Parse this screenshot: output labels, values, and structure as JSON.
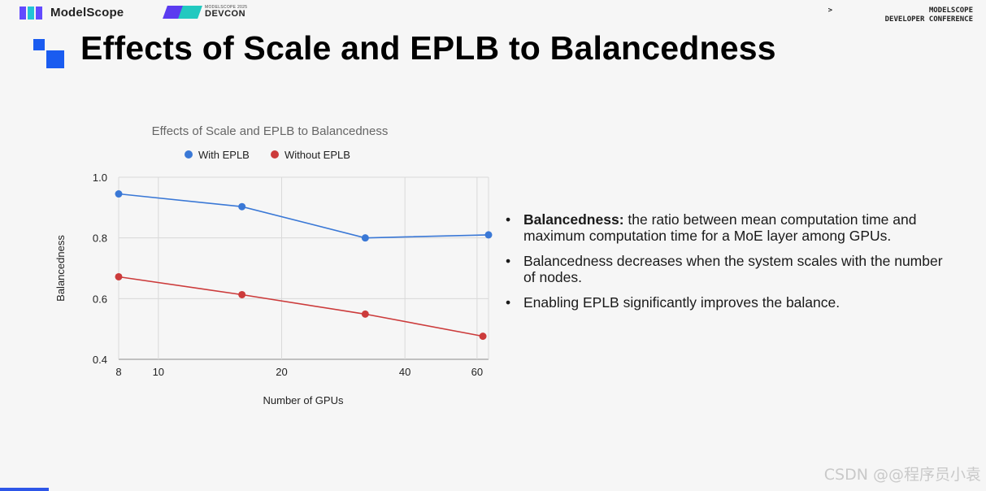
{
  "header": {
    "modelscope_logo": "ModelScope",
    "devcon_small": "MODELSCOPE 2025",
    "devcon_big": "DEVCON",
    "conference_prompt": ">",
    "conference_line1": "MODELSCOPE",
    "conference_line2": "DEVELOPER CONFERENCE"
  },
  "slide_title": "Effects of Scale and EPLB to Balancedness",
  "bullets": [
    {
      "bold": "Balancedness:",
      "text": " the ratio between mean computation time and maximum computation time for a MoE layer among GPUs."
    },
    {
      "bold": "",
      "text": "Balancedness decreases when the system scales with the number of nodes."
    },
    {
      "bold": "",
      "text": "Enabling EPLB significantly improves the balance."
    }
  ],
  "watermark": "CSDN @@程序员小袁",
  "colors": {
    "with_eplb": "#3a78d6",
    "without_eplb": "#cc3b3b",
    "accent": "#1a5cf0"
  },
  "chart_data": {
    "type": "line",
    "title": "Effects of Scale and EPLB to Balancedness",
    "xlabel": "Number of GPUs",
    "ylabel": "Balancedness",
    "xlim": [
      8,
      64
    ],
    "ylim": [
      0.4,
      1.0
    ],
    "x_ticks": [
      8,
      10,
      20,
      40,
      60
    ],
    "x_tick_labels": [
      "8",
      "10",
      "20",
      "40",
      "60"
    ],
    "y_ticks": [
      0.4,
      0.6,
      0.8,
      1.0
    ],
    "y_tick_labels": [
      "0.4",
      "0.6",
      "0.8",
      "1.0"
    ],
    "x_scale": "log",
    "legend_position": "top",
    "grid": true,
    "series": [
      {
        "name": "With EPLB",
        "x": [
          8,
          16,
          32,
          64
        ],
        "y": [
          0.945,
          0.903,
          0.8,
          0.81
        ]
      },
      {
        "name": "Without EPLB",
        "x": [
          8,
          16,
          32,
          62
        ],
        "y": [
          0.672,
          0.613,
          0.549,
          0.476
        ]
      }
    ]
  }
}
